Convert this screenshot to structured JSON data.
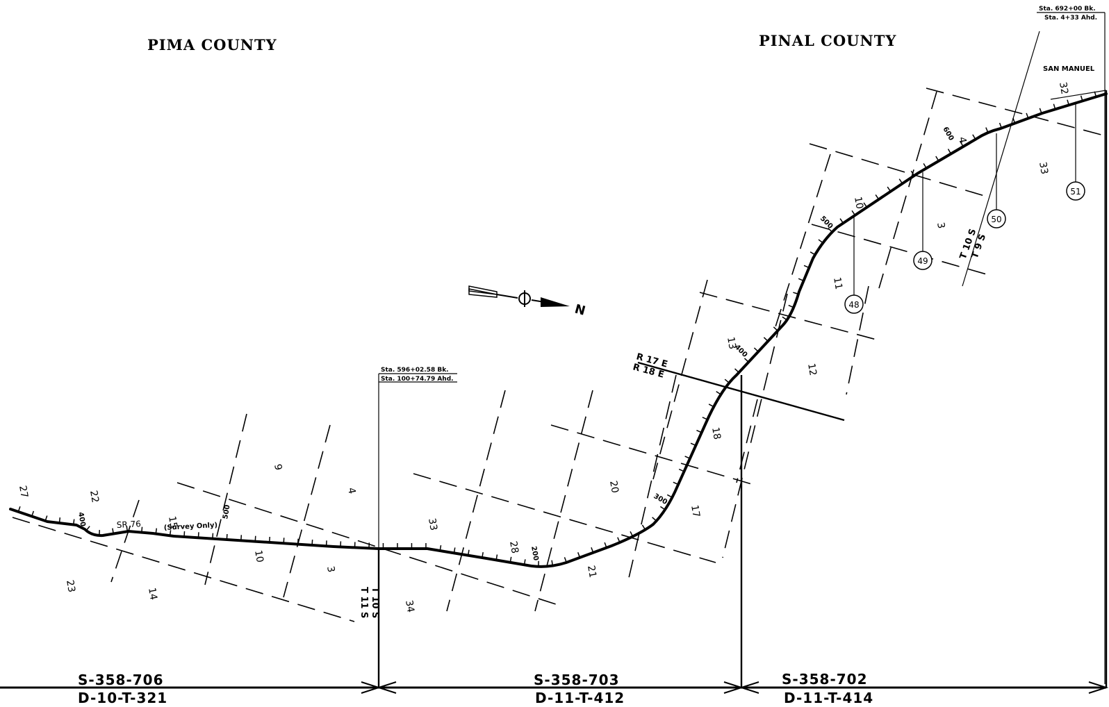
{
  "counties": {
    "left": "PIMA COUNTY",
    "right": "PINAL COUNTY"
  },
  "places": {
    "san_manuel": "SAN MANUEL"
  },
  "route": {
    "name": "SR 76",
    "note": "(Survey Only)"
  },
  "stations": {
    "sta1_line1": "Sta. 596+02.58 Bk.",
    "sta1_line2": "Sta. 100+74.79 Ahd.",
    "sta2_line1": "Sta. 692+00 Bk.",
    "sta2_line2": "Sta. 4+33 Ahd."
  },
  "station_marks": [
    "400",
    "500",
    "200",
    "300",
    "400",
    "500",
    "600"
  ],
  "ranges": {
    "r17": "R 17 E",
    "r18": "R 18 E"
  },
  "townships": {
    "t10": "T 10 S",
    "t11": "T 11 S",
    "t9": "T 9 S"
  },
  "sections": [
    "27",
    "22",
    "23",
    "15",
    "14",
    "9",
    "10",
    "4",
    "3",
    "33",
    "34",
    "28",
    "20",
    "21",
    "17",
    "18",
    "13",
    "12",
    "11",
    "10",
    "3",
    "4",
    "32",
    "33"
  ],
  "markers": [
    "48",
    "49",
    "50",
    "51"
  ],
  "sheets": [
    {
      "top": "S-358-706",
      "bottom": "D-10-T-321"
    },
    {
      "top": "S-358-703",
      "bottom": "D-11-T-412"
    },
    {
      "top": "S-358-702",
      "bottom": "D-11-T-414"
    }
  ],
  "north_arrow": {
    "label": "N",
    "icon": "north-arrow-icon"
  }
}
